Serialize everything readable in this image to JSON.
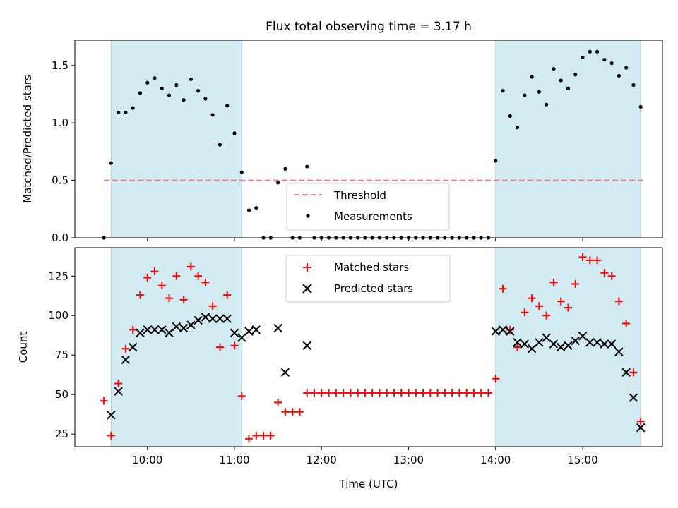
{
  "title": "Flux total observing time = 3.17 h",
  "colors": {
    "shade": "#add8e6",
    "threshold": "#f08080",
    "matched": "#ff0000",
    "predicted": "#000000",
    "measurement": "#000000"
  },
  "chart_data": [
    {
      "type": "scatter",
      "ylabel": "Matched/Predicted stars",
      "ylim": [
        0,
        1.72
      ],
      "yticks": [
        0,
        0.5,
        1.0,
        1.5
      ],
      "ytick_labels": [
        "0.0",
        "0.5",
        "1.0",
        "1.5"
      ],
      "threshold": {
        "value": 0.5,
        "x_range": [
          "09:30",
          "15:42"
        ]
      },
      "shaded_intervals": [
        [
          "09:35",
          "11:05"
        ],
        [
          "14:00",
          "15:40"
        ]
      ],
      "legend": {
        "entries": [
          "Threshold",
          "Measurements"
        ],
        "placement": "lower-center"
      },
      "series": [
        {
          "name": "Measurements",
          "x": [
            "09:30",
            "09:35",
            "09:40",
            "09:45",
            "09:50",
            "09:55",
            "10:00",
            "10:05",
            "10:10",
            "10:15",
            "10:20",
            "10:25",
            "10:30",
            "10:35",
            "10:40",
            "10:45",
            "10:50",
            "10:55",
            "11:00",
            "11:05",
            "11:10",
            "11:15",
            "11:20",
            "11:25",
            "11:30",
            "11:35",
            "11:40",
            "11:45",
            "11:50",
            "11:55",
            "12:00",
            "12:05",
            "12:10",
            "12:15",
            "12:20",
            "12:25",
            "12:30",
            "12:35",
            "12:40",
            "12:45",
            "12:50",
            "12:55",
            "13:00",
            "13:05",
            "13:10",
            "13:15",
            "13:20",
            "13:25",
            "13:30",
            "13:35",
            "13:40",
            "13:45",
            "13:50",
            "13:55",
            "14:00",
            "14:05",
            "14:10",
            "14:15",
            "14:20",
            "14:25",
            "14:30",
            "14:35",
            "14:40",
            "14:45",
            "14:50",
            "14:55",
            "15:00",
            "15:05",
            "15:10",
            "15:15",
            "15:20",
            "15:25",
            "15:30",
            "15:35",
            "15:40"
          ],
          "y": [
            0.0,
            0.65,
            1.09,
            1.09,
            1.13,
            1.26,
            1.35,
            1.39,
            1.3,
            1.24,
            1.33,
            1.2,
            1.38,
            1.28,
            1.21,
            1.07,
            0.81,
            1.15,
            0.91,
            0.57,
            0.24,
            0.26,
            0.0,
            0.0,
            0.48,
            0.6,
            0.0,
            0.0,
            0.62,
            0.0,
            0.0,
            0.0,
            0.0,
            0.0,
            0.0,
            0.0,
            0.0,
            0.0,
            0.0,
            0.0,
            0.0,
            0.0,
            0.0,
            0.0,
            0.0,
            0.0,
            0.0,
            0.0,
            0.0,
            0.0,
            0.0,
            0.0,
            0.0,
            0.0,
            0.67,
            1.28,
            1.06,
            0.96,
            1.24,
            1.4,
            1.27,
            1.16,
            1.47,
            1.37,
            1.3,
            1.42,
            1.57,
            1.62,
            1.62,
            1.55,
            1.52,
            1.41,
            1.48,
            1.33,
            1.14
          ]
        }
      ]
    },
    {
      "type": "scatter",
      "xlabel": "Time (UTC)",
      "ylabel": "Count",
      "xlim": [
        "09:10",
        "15:55"
      ],
      "xticks": [
        "10:00",
        "11:00",
        "12:00",
        "13:00",
        "14:00",
        "15:00"
      ],
      "ylim": [
        17,
        143
      ],
      "yticks": [
        25,
        50,
        75,
        100,
        125
      ],
      "shaded_intervals": [
        [
          "09:35",
          "11:05"
        ],
        [
          "14:00",
          "15:40"
        ]
      ],
      "legend": {
        "entries": [
          "Matched stars",
          "Predicted stars"
        ],
        "placement": "upper-center"
      },
      "series": [
        {
          "name": "Matched stars",
          "marker": "plus",
          "x": [
            "09:30",
            "09:35",
            "09:40",
            "09:45",
            "09:50",
            "09:55",
            "10:00",
            "10:05",
            "10:10",
            "10:15",
            "10:20",
            "10:25",
            "10:30",
            "10:35",
            "10:40",
            "10:45",
            "10:50",
            "10:55",
            "11:00",
            "11:05",
            "11:10",
            "11:15",
            "11:20",
            "11:25",
            "11:30",
            "11:35",
            "11:40",
            "11:45",
            "11:50",
            "11:55",
            "12:00",
            "12:05",
            "12:10",
            "12:15",
            "12:20",
            "12:25",
            "12:30",
            "12:35",
            "12:40",
            "12:45",
            "12:50",
            "12:55",
            "13:00",
            "13:05",
            "13:10",
            "13:15",
            "13:20",
            "13:25",
            "13:30",
            "13:35",
            "13:40",
            "13:45",
            "13:50",
            "13:55",
            "14:00",
            "14:05",
            "14:10",
            "14:15",
            "14:20",
            "14:25",
            "14:30",
            "14:35",
            "14:40",
            "14:45",
            "14:50",
            "14:55",
            "15:00",
            "15:05",
            "15:10",
            "15:15",
            "15:20",
            "15:25",
            "15:30",
            "15:35",
            "15:40"
          ],
          "y": [
            46,
            24,
            57,
            79,
            91,
            113,
            124,
            128,
            119,
            111,
            125,
            110,
            131,
            125,
            121,
            106,
            80,
            113,
            81,
            49,
            22,
            24,
            24,
            24,
            45,
            39,
            39,
            39,
            51,
            51,
            51,
            51,
            51,
            51,
            51,
            51,
            51,
            51,
            51,
            51,
            51,
            51,
            51,
            51,
            51,
            51,
            51,
            51,
            51,
            51,
            51,
            51,
            51,
            51,
            60,
            117,
            91,
            80,
            102,
            111,
            106,
            100,
            121,
            109,
            105,
            120,
            137,
            135,
            135,
            127,
            125,
            109,
            95,
            64,
            33
          ]
        },
        {
          "name": "Predicted stars",
          "marker": "x",
          "x": [
            "09:35",
            "09:40",
            "09:45",
            "09:50",
            "09:55",
            "10:00",
            "10:05",
            "10:10",
            "10:15",
            "10:20",
            "10:25",
            "10:30",
            "10:35",
            "10:40",
            "10:45",
            "10:50",
            "10:55",
            "11:00",
            "11:05",
            "11:10",
            "11:15",
            "11:30",
            "11:35",
            "11:50",
            "14:00",
            "14:05",
            "14:10",
            "14:15",
            "14:20",
            "14:25",
            "14:30",
            "14:35",
            "14:40",
            "14:45",
            "14:50",
            "14:55",
            "15:00",
            "15:05",
            "15:10",
            "15:15",
            "15:20",
            "15:25",
            "15:30",
            "15:35",
            "15:40"
          ],
          "y": [
            37,
            52,
            72,
            80,
            89,
            91,
            91,
            91,
            89,
            93,
            92,
            94,
            97,
            99,
            98,
            98,
            98,
            89,
            86,
            90,
            91,
            92,
            64,
            81,
            90,
            91,
            90,
            83,
            82,
            79,
            83,
            86,
            82,
            80,
            81,
            84,
            87,
            83,
            83,
            82,
            82,
            77,
            64,
            48,
            29
          ]
        }
      ]
    }
  ]
}
